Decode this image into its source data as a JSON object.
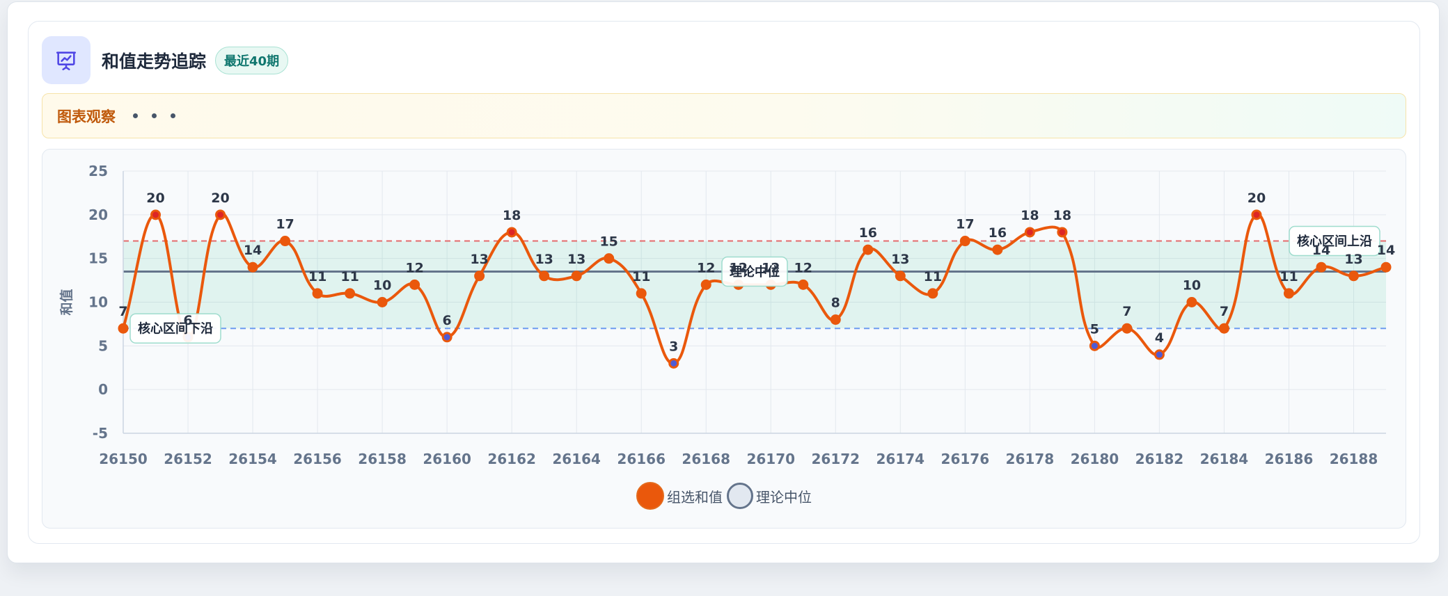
{
  "header": {
    "icon": "presentation-chart-icon",
    "title": "和值走势追踪",
    "badge": "最近40期"
  },
  "banner": {
    "label": "图表观察",
    "indicator_icon": "loading-dots-icon"
  },
  "chart_data": {
    "type": "line",
    "x": [
      26150,
      26151,
      26152,
      26153,
      26154,
      26155,
      26156,
      26157,
      26158,
      26159,
      26160,
      26161,
      26162,
      26163,
      26164,
      26165,
      26166,
      26167,
      26168,
      26169,
      26170,
      26171,
      26172,
      26173,
      26174,
      26175,
      26176,
      26177,
      26178,
      26179,
      26180,
      26181,
      26182,
      26183,
      26184,
      26185,
      26186,
      26187,
      26188,
      26189
    ],
    "xticks": [
      26150,
      26152,
      26154,
      26156,
      26158,
      26160,
      26162,
      26164,
      26166,
      26168,
      26170,
      26172,
      26174,
      26176,
      26178,
      26180,
      26182,
      26184,
      26186,
      26188
    ],
    "series": [
      {
        "name": "组选和值",
        "values": [
          7,
          20,
          6,
          20,
          14,
          17,
          11,
          11,
          10,
          12,
          6,
          13,
          18,
          13,
          13,
          15,
          11,
          3,
          12,
          12,
          12,
          12,
          8,
          16,
          13,
          11,
          17,
          16,
          18,
          18,
          5,
          7,
          4,
          10,
          7,
          20,
          11,
          14,
          13,
          14
        ],
        "color": "#ea580c",
        "above_upper_point_color": "#dc2626",
        "below_lower_point_color": "#4f5bd5",
        "data_labels": true
      }
    ],
    "reference_lines": [
      {
        "label": "核心区间上沿",
        "y": 17,
        "style": "dashed",
        "color": "#e36b6b"
      },
      {
        "label": "核心区间下沿",
        "y": 7,
        "style": "dashed",
        "color": "#6d9cf0"
      },
      {
        "label": "理论中位",
        "y": 13.5,
        "style": "solid",
        "color": "#64748b"
      }
    ],
    "band": {
      "from": 7,
      "to": 17,
      "color": "#10b981"
    },
    "yticks": [
      25,
      20,
      15,
      10,
      5,
      0,
      -5
    ],
    "ylim": [
      -5,
      25
    ],
    "ylabel": "和值",
    "grid": true,
    "legend": "bottom"
  }
}
